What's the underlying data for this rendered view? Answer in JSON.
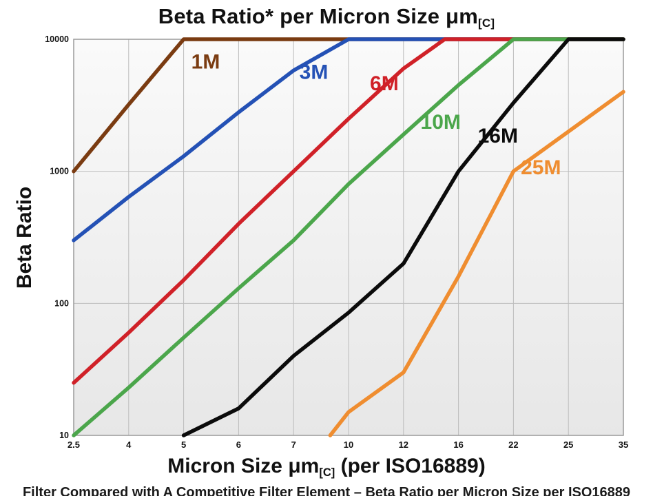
{
  "title": {
    "text": "Beta Ratio* per Micron Size μm",
    "subscript": "[C]"
  },
  "y_axis_title": "Beta Ratio",
  "x_axis_title": {
    "pre": "Micron Size μm",
    "subscript": "[C]",
    "post": " (per ISO16889)"
  },
  "footer_clipped_text": "Filter Compared with A Competitive Filter Element  –  Beta Ratio per Micron Size per ISO16889",
  "colors": {
    "grid": "#bcbcbc",
    "border": "#9a9a9a",
    "plot_bg_top": "#fafafa",
    "plot_bg_bottom": "#e7e7e7",
    "tick_text": "#111111"
  },
  "chart_data": {
    "type": "line",
    "title": "Beta Ratio* per Micron Size μm[C]",
    "xlabel": "Micron Size μm[C] (per ISO16889)",
    "ylabel": "Beta Ratio",
    "y_scale": "log",
    "ylim": [
      10,
      10000
    ],
    "grid": true,
    "legend_position": "inline-labels",
    "x_ticks": [
      2.5,
      4,
      5,
      6,
      7,
      10,
      12,
      16,
      22,
      25,
      35
    ],
    "y_ticks": [
      10,
      100,
      1000,
      10000
    ],
    "series": [
      {
        "name": "1M",
        "color": "#7a3b11",
        "label_at": [
          5.4,
          6000
        ],
        "points": [
          [
            2.5,
            1000
          ],
          [
            4,
            3200
          ],
          [
            5,
            10000
          ],
          [
            35,
            10000
          ]
        ]
      },
      {
        "name": "3M",
        "color": "#2451b5",
        "label_at": [
          8.1,
          5000
        ],
        "points": [
          [
            2.5,
            300
          ],
          [
            4,
            640
          ],
          [
            5,
            1300
          ],
          [
            6,
            2800
          ],
          [
            7,
            5800
          ],
          [
            10,
            10000
          ],
          [
            35,
            10000
          ]
        ]
      },
      {
        "name": "6M",
        "color": "#d02128",
        "label_at": [
          11.3,
          4100
        ],
        "points": [
          [
            2.5,
            25
          ],
          [
            4,
            60
          ],
          [
            5,
            150
          ],
          [
            6,
            400
          ],
          [
            7,
            1000
          ],
          [
            10,
            2500
          ],
          [
            12,
            6000
          ],
          [
            15,
            10000
          ],
          [
            35,
            10000
          ]
        ]
      },
      {
        "name": "10M",
        "color": "#4ba64b",
        "label_at": [
          14.7,
          2100
        ],
        "points": [
          [
            2.5,
            10
          ],
          [
            4,
            23
          ],
          [
            5,
            55
          ],
          [
            6,
            130
          ],
          [
            7,
            300
          ],
          [
            10,
            800
          ],
          [
            12,
            1900
          ],
          [
            16,
            4500
          ],
          [
            22,
            10000
          ],
          [
            35,
            10000
          ]
        ]
      },
      {
        "name": "16M",
        "color": "#0b0b0b",
        "label_at": [
          20.3,
          1650
        ],
        "points": [
          [
            5,
            10
          ],
          [
            6,
            16
          ],
          [
            7,
            40
          ],
          [
            10,
            85
          ],
          [
            12,
            200
          ],
          [
            16,
            1000
          ],
          [
            22,
            3300
          ],
          [
            25,
            10000
          ],
          [
            35,
            10000
          ]
        ]
      },
      {
        "name": "25M",
        "color": "#ef8d30",
        "label_at": [
          23.5,
          950
        ],
        "points": [
          [
            9,
            10
          ],
          [
            10,
            15
          ],
          [
            12,
            30
          ],
          [
            16,
            160
          ],
          [
            22,
            1000
          ],
          [
            25,
            2000
          ],
          [
            35,
            4000
          ]
        ]
      }
    ]
  }
}
